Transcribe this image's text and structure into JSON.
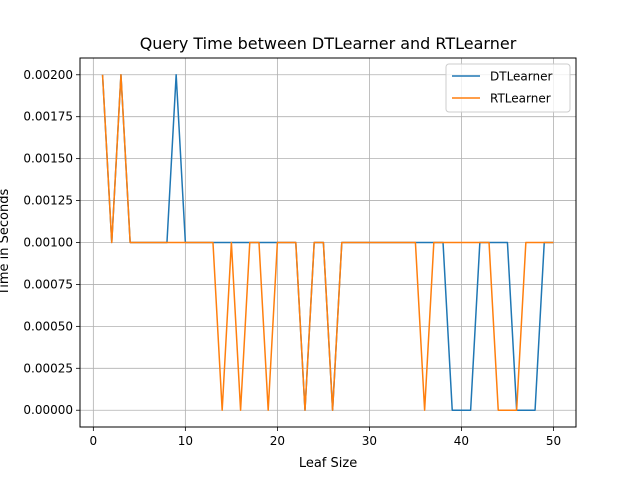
{
  "chart_data": {
    "type": "line",
    "title": "Query Time between DTLearner and RTLearner",
    "xlabel": "Leaf Size",
    "ylabel": "Time in Seconds",
    "xlim": [
      -1.45,
      52.45
    ],
    "ylim": [
      -0.0001,
      0.0021
    ],
    "x_ticks": [
      0,
      10,
      20,
      30,
      40,
      50
    ],
    "x_tick_labels": [
      "0",
      "10",
      "20",
      "30",
      "40",
      "50"
    ],
    "y_ticks": [
      0.0,
      0.00025,
      0.0005,
      0.00075,
      0.001,
      0.00125,
      0.0015,
      0.00175,
      0.002
    ],
    "y_tick_labels": [
      "0.00000",
      "0.00025",
      "0.00050",
      "0.00075",
      "0.00100",
      "0.00125",
      "0.00150",
      "0.00175",
      "0.00200"
    ],
    "grid": true,
    "legend_position": "top-right",
    "x": [
      1,
      2,
      3,
      4,
      5,
      6,
      7,
      8,
      9,
      10,
      11,
      12,
      13,
      14,
      15,
      16,
      17,
      18,
      19,
      20,
      21,
      22,
      23,
      24,
      25,
      26,
      27,
      28,
      29,
      30,
      31,
      32,
      33,
      34,
      35,
      36,
      37,
      38,
      39,
      40,
      41,
      42,
      43,
      44,
      45,
      46,
      47,
      48,
      49,
      50
    ],
    "series": [
      {
        "name": "DTLearner",
        "color": "#1f77b4",
        "values": [
          0.002,
          0.001,
          0.002,
          0.001,
          0.001,
          0.001,
          0.001,
          0.001,
          0.002,
          0.001,
          0.001,
          0.001,
          0.001,
          0.001,
          0.001,
          0.001,
          0.001,
          0.001,
          0.001,
          0.001,
          0.001,
          0.001,
          0.0,
          0.001,
          0.001,
          0.0,
          0.001,
          0.001,
          0.001,
          0.001,
          0.001,
          0.001,
          0.001,
          0.001,
          0.001,
          0.001,
          0.001,
          0.001,
          0.0,
          0.0,
          0.0,
          0.001,
          0.001,
          0.001,
          0.001,
          0.0,
          0.0,
          0.0,
          0.001,
          0.001
        ]
      },
      {
        "name": "RTLearner",
        "color": "#ff7f0e",
        "values": [
          0.002,
          0.001,
          0.002,
          0.001,
          0.001,
          0.001,
          0.001,
          0.001,
          0.001,
          0.001,
          0.001,
          0.001,
          0.001,
          0.0,
          0.001,
          0.0,
          0.001,
          0.001,
          0.0,
          0.001,
          0.001,
          0.001,
          0.0,
          0.001,
          0.001,
          0.0,
          0.001,
          0.001,
          0.001,
          0.001,
          0.001,
          0.001,
          0.001,
          0.001,
          0.001,
          0.0,
          0.001,
          0.001,
          0.001,
          0.001,
          0.001,
          0.001,
          0.001,
          0.0,
          0.0,
          0.0,
          0.001,
          0.001,
          0.001,
          0.001
        ]
      }
    ]
  }
}
